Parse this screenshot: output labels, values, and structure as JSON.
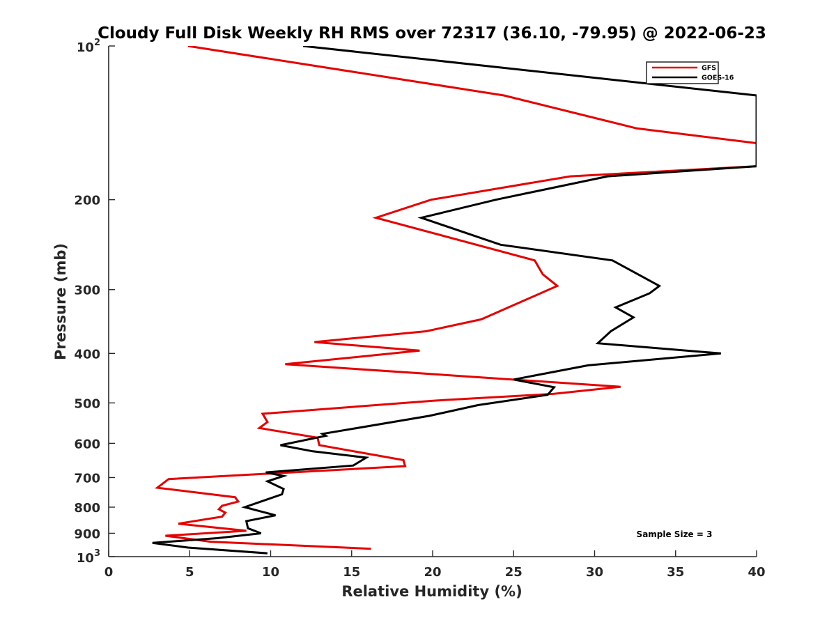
{
  "chart_data": {
    "type": "line",
    "title": "Cloudy Full Disk Weekly RH RMS over 72317 (36.10, -79.95) @ 2022-06-23",
    "xlabel": "Relative Humidity (%)",
    "ylabel": "Pressure (mb)",
    "xlim": [
      0,
      40
    ],
    "ylim": [
      100,
      1000
    ],
    "yscale": "log",
    "y_reversed": true,
    "grid": false,
    "legend_position": "top-right",
    "x_ticks": [
      "0",
      "5",
      "10",
      "15",
      "20",
      "25",
      "30",
      "35",
      "40"
    ],
    "y_ticks": [
      {
        "value": 100,
        "label": "10",
        "sup": "2"
      },
      {
        "value": 200,
        "label": "200",
        "sup": ""
      },
      {
        "value": 300,
        "label": "300",
        "sup": ""
      },
      {
        "value": 400,
        "label": "400",
        "sup": ""
      },
      {
        "value": 500,
        "label": "500",
        "sup": ""
      },
      {
        "value": 600,
        "label": "600",
        "sup": ""
      },
      {
        "value": 700,
        "label": "700",
        "sup": ""
      },
      {
        "value": 800,
        "label": "800",
        "sup": ""
      },
      {
        "value": 900,
        "label": "900",
        "sup": ""
      },
      {
        "value": 1000,
        "label": "10",
        "sup": "3"
      }
    ],
    "annotation": "Sample Size = 3",
    "series": [
      {
        "name": "GFS",
        "color": "#e60000",
        "points": [
          [
            4.9,
            100
          ],
          [
            24.4,
            125
          ],
          [
            32.6,
            145
          ],
          [
            40.0,
            155
          ],
          [
            40.0,
            172
          ],
          [
            28.5,
            180
          ],
          [
            19.9,
            200
          ],
          [
            16.5,
            217
          ],
          [
            26.3,
            263
          ],
          [
            26.8,
            280
          ],
          [
            27.7,
            295
          ],
          [
            23.0,
            343
          ],
          [
            19.6,
            362
          ],
          [
            12.7,
            380
          ],
          [
            19.2,
            395
          ],
          [
            10.9,
            420
          ],
          [
            31.6,
            465
          ],
          [
            27.5,
            480
          ],
          [
            20.1,
            495
          ],
          [
            9.5,
            525
          ],
          [
            9.8,
            545
          ],
          [
            9.3,
            560
          ],
          [
            12.9,
            585
          ],
          [
            13.0,
            605
          ],
          [
            18.2,
            647
          ],
          [
            18.3,
            665
          ],
          [
            3.7,
            705
          ],
          [
            3.0,
            733
          ],
          [
            7.8,
            765
          ],
          [
            8.0,
            780
          ],
          [
            7.0,
            795
          ],
          [
            6.8,
            808
          ],
          [
            7.2,
            820
          ],
          [
            7.0,
            835
          ],
          [
            4.3,
            862
          ],
          [
            8.5,
            890
          ],
          [
            3.5,
            910
          ],
          [
            6.3,
            935
          ],
          [
            16.2,
            965
          ]
        ]
      },
      {
        "name": "GOES-16",
        "color": "#000000",
        "points": [
          [
            12.0,
            100
          ],
          [
            40.0,
            125
          ],
          [
            40.0,
            172
          ],
          [
            30.8,
            180
          ],
          [
            23.9,
            200
          ],
          [
            19.3,
            217
          ],
          [
            24.2,
            245
          ],
          [
            31.1,
            263
          ],
          [
            34.0,
            295
          ],
          [
            33.4,
            305
          ],
          [
            31.3,
            325
          ],
          [
            32.4,
            340
          ],
          [
            31.0,
            362
          ],
          [
            30.2,
            382
          ],
          [
            37.8,
            400
          ],
          [
            29.6,
            422
          ],
          [
            25.0,
            450
          ],
          [
            27.5,
            466
          ],
          [
            27.1,
            482
          ],
          [
            22.8,
            505
          ],
          [
            19.8,
            530
          ],
          [
            13.2,
            575
          ],
          [
            13.4,
            580
          ],
          [
            10.6,
            605
          ],
          [
            12.6,
            622
          ],
          [
            15.9,
            640
          ],
          [
            15.1,
            663
          ],
          [
            9.7,
            684
          ],
          [
            10.8,
            695
          ],
          [
            9.8,
            712
          ],
          [
            10.8,
            737
          ],
          [
            10.7,
            755
          ],
          [
            8.4,
            800
          ],
          [
            10.3,
            830
          ],
          [
            8.5,
            852
          ],
          [
            8.6,
            880
          ],
          [
            9.4,
            900
          ],
          [
            6.7,
            920
          ],
          [
            2.7,
            940
          ],
          [
            4.9,
            960
          ],
          [
            9.8,
            985
          ]
        ]
      }
    ]
  }
}
